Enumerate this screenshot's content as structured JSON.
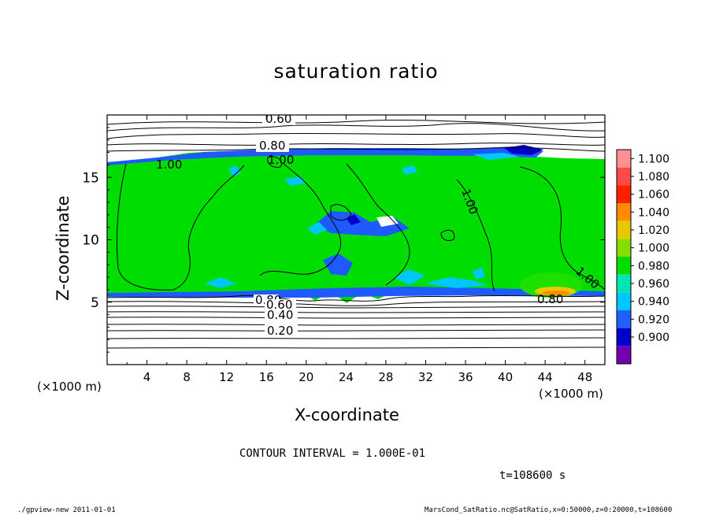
{
  "chart_data": {
    "type": "heatmap",
    "title": "saturation ratio",
    "xlabel": "X-coordinate",
    "ylabel": "Z-coordinate",
    "x_unit": "(×1000 m)",
    "y_unit": "(×1000 m)",
    "xlim": [
      0,
      50
    ],
    "ylim": [
      0,
      20
    ],
    "x_ticks": [
      "4",
      "8",
      "12",
      "16",
      "20",
      "24",
      "28",
      "32",
      "36",
      "40",
      "44",
      "48"
    ],
    "y_ticks": [
      "5",
      "10",
      "15"
    ],
    "colorbar": {
      "labels": [
        "1.100",
        "1.080",
        "1.060",
        "1.040",
        "1.020",
        "1.000",
        "0.980",
        "0.960",
        "0.940",
        "0.920",
        "0.900"
      ],
      "colors": [
        "#ff9090",
        "#ff4a4a",
        "#ff2000",
        "#ff8c00",
        "#e8c800",
        "#88dd00",
        "#00dd00",
        "#00e6b0",
        "#00c8ff",
        "#2060ff",
        "#0000c8",
        "#7000b0"
      ]
    },
    "contour_labels": [
      "0.60",
      "0.80",
      "1.00",
      "1.00",
      "1.00",
      "1.00",
      "0.80",
      "0.60",
      "0.40",
      "0.20",
      "0.80"
    ]
  },
  "footer": {
    "contour_interval": "CONTOUR INTERVAL = 1.000E-01",
    "time": "t=108600 s",
    "program": "./gpview-new  2011-01-01",
    "source": "MarsCond_SatRatio.nc@SatRatio,x=0:50000,z=0:20000,t=108600"
  }
}
